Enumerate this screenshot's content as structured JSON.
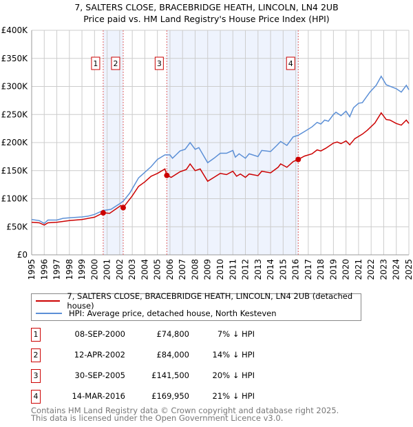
{
  "title": "7, SALTERS CLOSE, BRACEBRIDGE HEATH, LINCOLN, LN4 2UB",
  "subtitle": "Price paid vs. HM Land Registry's House Price Index (HPI)",
  "chart_data": {
    "type": "line",
    "xlim": [
      1995,
      2025
    ],
    "ylim": [
      0,
      400000
    ],
    "yticks": [
      0,
      50000,
      100000,
      150000,
      200000,
      250000,
      300000,
      350000,
      400000
    ],
    "ytick_labels": [
      "£0",
      "£50K",
      "£100K",
      "£150K",
      "£200K",
      "£250K",
      "£300K",
      "£350K",
      "£400K"
    ],
    "xticks": [
      1995,
      1996,
      1997,
      1998,
      1999,
      2000,
      2001,
      2002,
      2003,
      2004,
      2005,
      2006,
      2007,
      2008,
      2009,
      2010,
      2011,
      2012,
      2013,
      2014,
      2015,
      2016,
      2017,
      2018,
      2019,
      2020,
      2021,
      2022,
      2023,
      2024,
      2025
    ],
    "grid": true,
    "colors": {
      "property": "#cc0000",
      "hpi": "#5b8fd6",
      "shade": "#eef3fd",
      "marker_line": "#e06060"
    },
    "shaded_ranges": [
      [
        2000.69,
        2002.28
      ],
      [
        2005.75,
        2016.2
      ]
    ],
    "series": [
      {
        "name": "7, SALTERS CLOSE, BRACEBRIDGE HEATH, LINCOLN, LN4 2UB (detached house)",
        "key": "property",
        "points": [
          [
            1995,
            58
          ],
          [
            1995.6,
            57
          ],
          [
            1996,
            53
          ],
          [
            1996.3,
            57
          ],
          [
            1997,
            58
          ],
          [
            1998,
            61
          ],
          [
            1999,
            63
          ],
          [
            2000,
            67
          ],
          [
            2000.69,
            74.8
          ],
          [
            2001.2,
            74
          ],
          [
            2002.1,
            88
          ],
          [
            2002.28,
            84
          ],
          [
            2003,
            105
          ],
          [
            2003.5,
            122
          ],
          [
            2004,
            130
          ],
          [
            2004.5,
            140
          ],
          [
            2005,
            145
          ],
          [
            2005.6,
            153
          ],
          [
            2005.75,
            141.5
          ],
          [
            2006.1,
            138
          ],
          [
            2006.8,
            148
          ],
          [
            2007.3,
            152
          ],
          [
            2007.6,
            162
          ],
          [
            2008,
            150
          ],
          [
            2008.4,
            153
          ],
          [
            2009,
            131
          ],
          [
            2009.5,
            138
          ],
          [
            2010,
            145
          ],
          [
            2010.5,
            143
          ],
          [
            2011,
            149
          ],
          [
            2011.3,
            140
          ],
          [
            2011.6,
            144
          ],
          [
            2012,
            138
          ],
          [
            2012.3,
            144
          ],
          [
            2013,
            141
          ],
          [
            2013.3,
            149
          ],
          [
            2014,
            146
          ],
          [
            2014.6,
            156
          ],
          [
            2014.8,
            162
          ],
          [
            2015.3,
            156
          ],
          [
            2015.8,
            166
          ],
          [
            2016.2,
            170
          ],
          [
            2016.7,
            176
          ],
          [
            2017.3,
            180
          ],
          [
            2017.7,
            187
          ],
          [
            2018,
            185
          ],
          [
            2018.4,
            190
          ],
          [
            2019,
            199
          ],
          [
            2019.3,
            201
          ],
          [
            2019.6,
            198
          ],
          [
            2020,
            203
          ],
          [
            2020.3,
            196
          ],
          [
            2020.7,
            207
          ],
          [
            2021.3,
            215
          ],
          [
            2021.7,
            222
          ],
          [
            2022.3,
            235
          ],
          [
            2022.8,
            253
          ],
          [
            2023.2,
            241
          ],
          [
            2023.5,
            240
          ],
          [
            2024,
            234
          ],
          [
            2024.4,
            231
          ],
          [
            2024.8,
            240
          ],
          [
            2025,
            234
          ]
        ]
      },
      {
        "name": "HPI: Average price, detached house, North Kesteven",
        "key": "hpi",
        "points": [
          [
            1995,
            63
          ],
          [
            1995.6,
            61
          ],
          [
            1996,
            56
          ],
          [
            1996.3,
            62
          ],
          [
            1997,
            62
          ],
          [
            1997.5,
            65
          ],
          [
            1998,
            66
          ],
          [
            1999,
            67.5
          ],
          [
            1999.5,
            69
          ],
          [
            2000,
            72
          ],
          [
            2000.69,
            79
          ],
          [
            2001.3,
            81
          ],
          [
            2002,
            91
          ],
          [
            2002.3,
            96
          ],
          [
            2002.8,
            110
          ],
          [
            2003.5,
            137
          ],
          [
            2004,
            147
          ],
          [
            2004.5,
            157
          ],
          [
            2005,
            170
          ],
          [
            2005.6,
            178
          ],
          [
            2006,
            178
          ],
          [
            2006.2,
            172
          ],
          [
            2006.8,
            185
          ],
          [
            2007.2,
            188
          ],
          [
            2007.6,
            200
          ],
          [
            2008,
            188
          ],
          [
            2008.3,
            191
          ],
          [
            2009,
            164
          ],
          [
            2009.5,
            172
          ],
          [
            2010,
            181
          ],
          [
            2010.5,
            181
          ],
          [
            2011,
            186
          ],
          [
            2011.2,
            174
          ],
          [
            2011.5,
            180
          ],
          [
            2012,
            172
          ],
          [
            2012.3,
            180
          ],
          [
            2013,
            175
          ],
          [
            2013.3,
            186
          ],
          [
            2014,
            184
          ],
          [
            2014.5,
            195
          ],
          [
            2014.8,
            202
          ],
          [
            2015.3,
            195
          ],
          [
            2015.8,
            210
          ],
          [
            2016.2,
            213
          ],
          [
            2016.8,
            221
          ],
          [
            2017.3,
            228
          ],
          [
            2017.7,
            236
          ],
          [
            2018,
            233
          ],
          [
            2018.3,
            240
          ],
          [
            2018.6,
            238
          ],
          [
            2019,
            250
          ],
          [
            2019.2,
            254
          ],
          [
            2019.6,
            248
          ],
          [
            2020,
            256
          ],
          [
            2020.3,
            246
          ],
          [
            2020.6,
            262
          ],
          [
            2021,
            270
          ],
          [
            2021.3,
            271
          ],
          [
            2021.9,
            290
          ],
          [
            2022.4,
            302
          ],
          [
            2022.8,
            318
          ],
          [
            2023.2,
            303
          ],
          [
            2024,
            296
          ],
          [
            2024.4,
            290
          ],
          [
            2024.8,
            302
          ],
          [
            2025,
            294
          ]
        ]
      }
    ],
    "sales": [
      {
        "num": "1",
        "x": 2000.69,
        "y": 74.8
      },
      {
        "num": "2",
        "x": 2002.28,
        "y": 84.0
      },
      {
        "num": "3",
        "x": 2005.75,
        "y": 141.5
      },
      {
        "num": "4",
        "x": 2016.2,
        "y": 169.95
      }
    ]
  },
  "legend": {
    "property": "7, SALTERS CLOSE, BRACEBRIDGE HEATH, LINCOLN, LN4 2UB (detached house)",
    "hpi": "HPI: Average price, detached house, North Kesteven"
  },
  "transactions": [
    {
      "num": "1",
      "date": "08-SEP-2000",
      "price": "£74,800",
      "hpi": "7% ↓ HPI"
    },
    {
      "num": "2",
      "date": "12-APR-2002",
      "price": "£84,000",
      "hpi": "14% ↓ HPI"
    },
    {
      "num": "3",
      "date": "30-SEP-2005",
      "price": "£141,500",
      "hpi": "20% ↓ HPI"
    },
    {
      "num": "4",
      "date": "14-MAR-2016",
      "price": "£169,950",
      "hpi": "21% ↓ HPI"
    }
  ],
  "footer": {
    "line1": "Contains HM Land Registry data © Crown copyright and database right 2025.",
    "line2": "This data is licensed under the Open Government Licence v3.0."
  }
}
